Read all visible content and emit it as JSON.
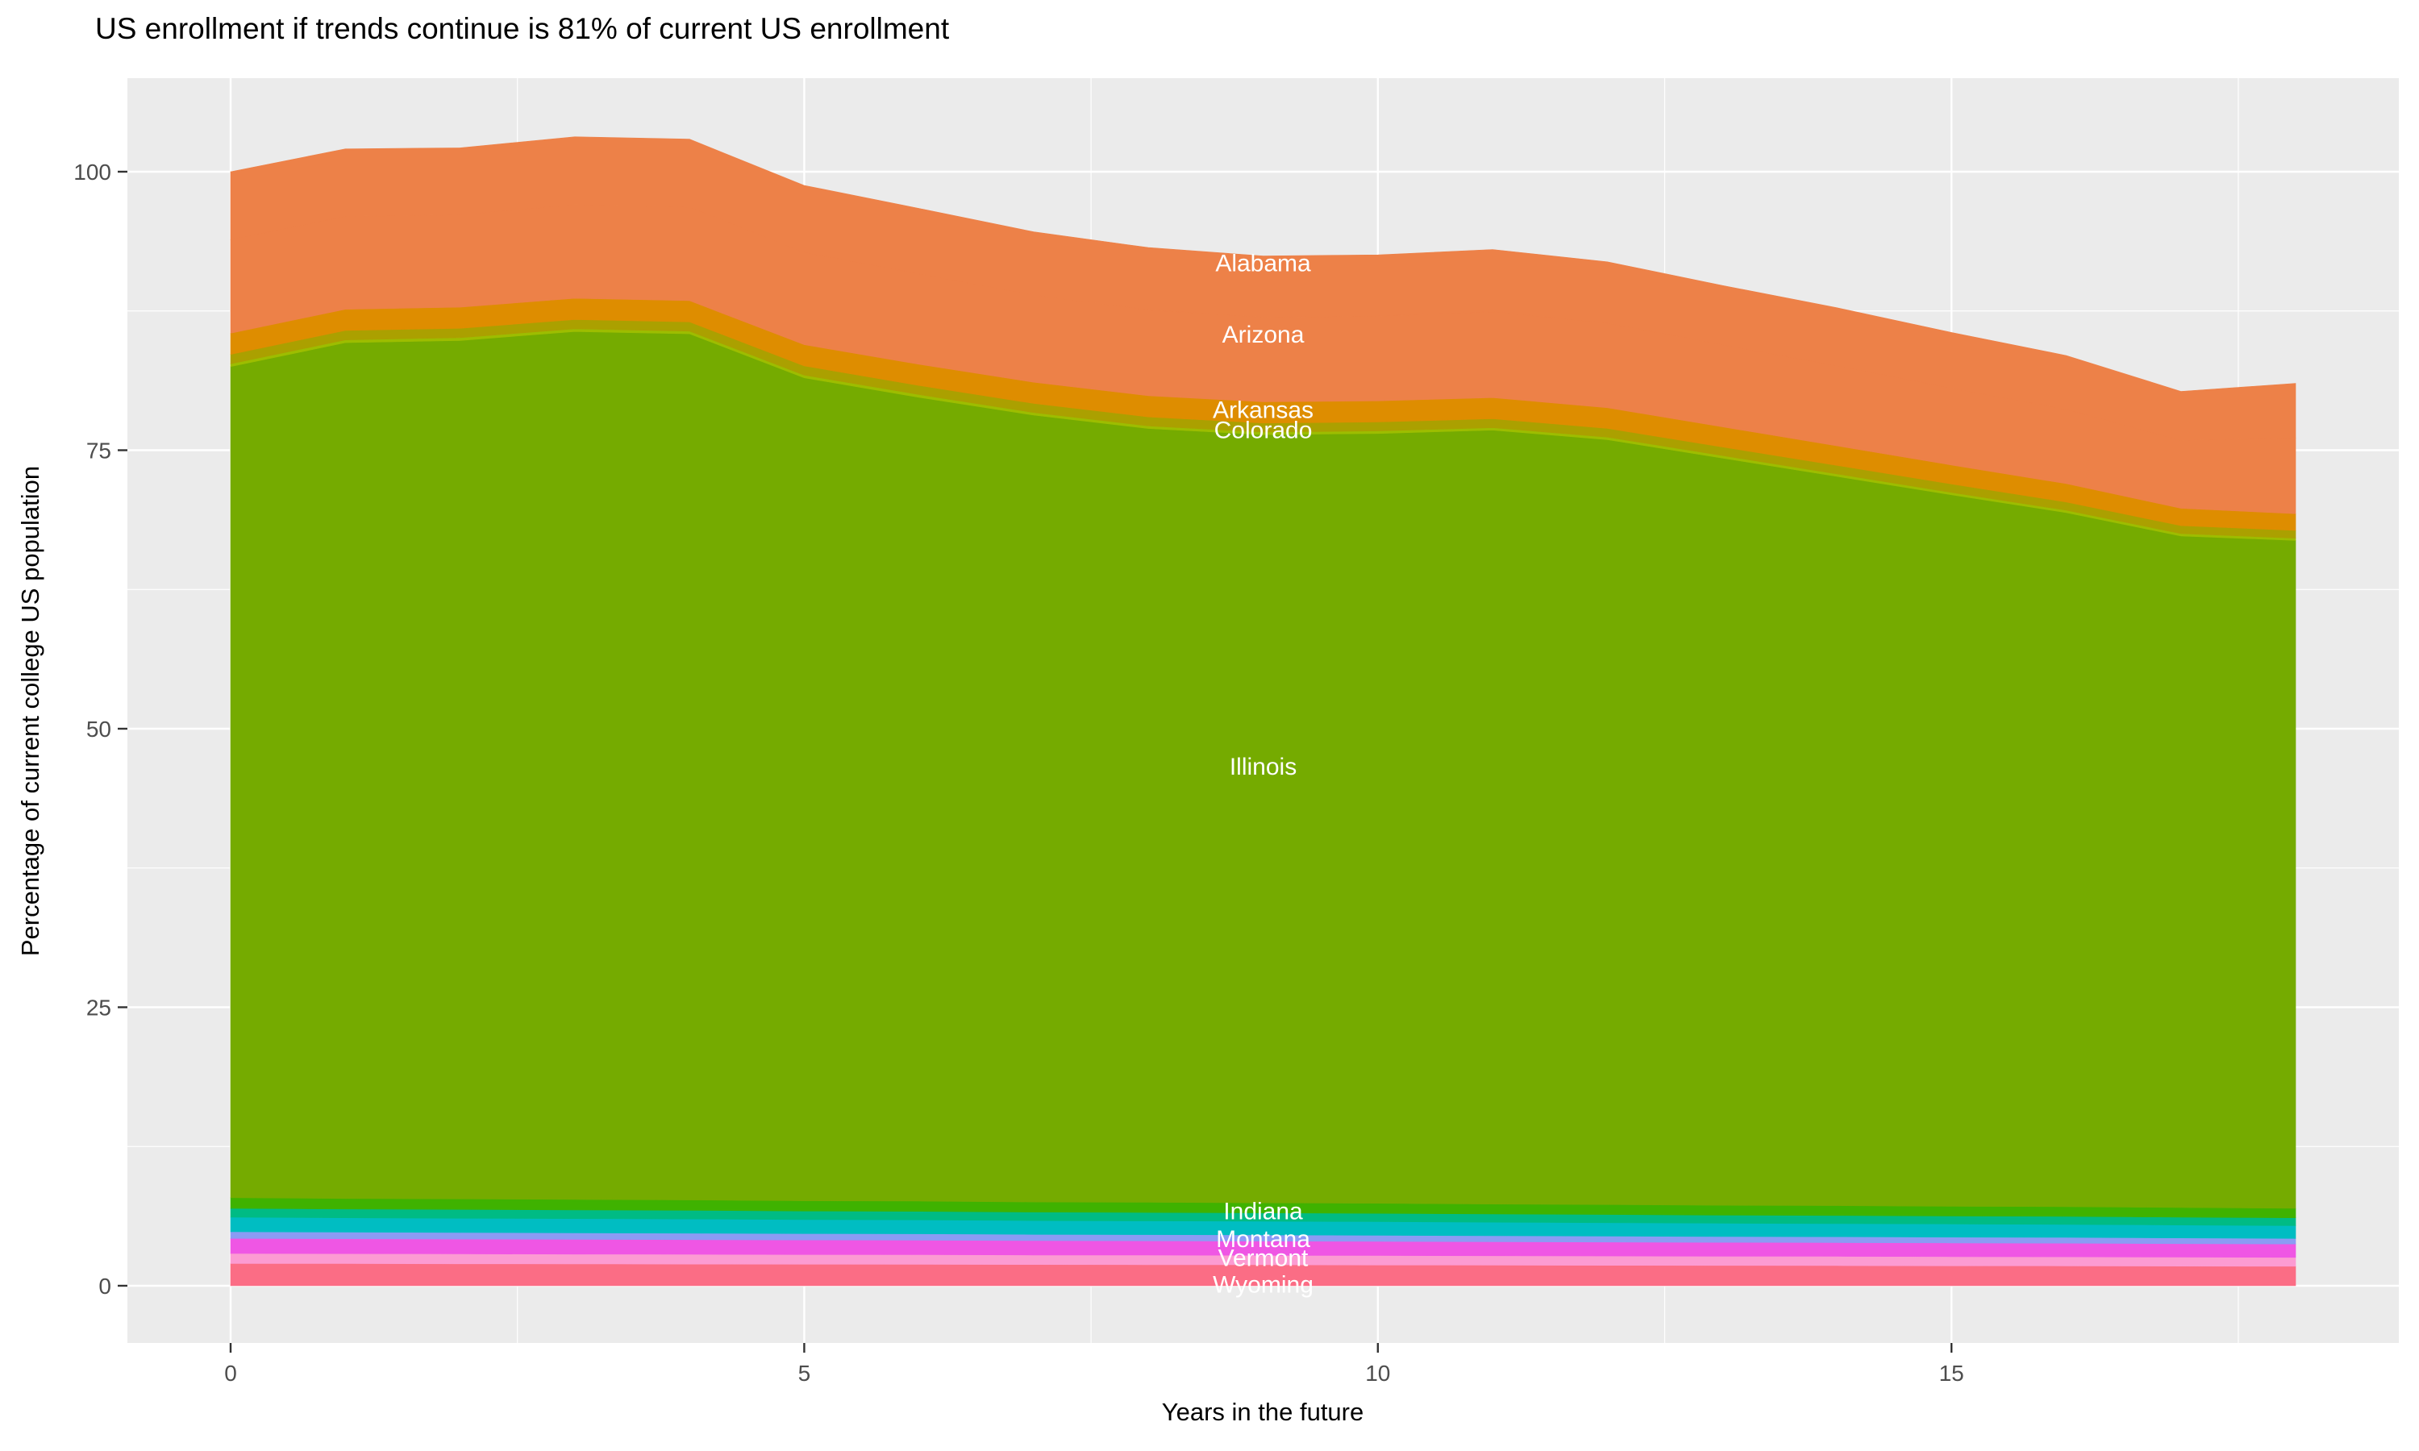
{
  "title": "US enrollment if trends continue is 81% of current US enrollment",
  "x_axis": {
    "label": "Years in the future",
    "ticks": [
      0,
      5,
      10,
      15
    ],
    "minor_ticks": [
      2.5,
      7.5,
      12.5,
      17.5
    ],
    "range": [
      0,
      18
    ]
  },
  "y_axis": {
    "label": "Percentage of current college US population",
    "ticks": [
      0,
      25,
      50,
      75,
      100
    ],
    "minor_ticks": [
      12.5,
      37.5,
      62.5,
      87.5
    ],
    "range": [
      0,
      103.2
    ]
  },
  "style_colors": {
    "panel_background": "#EBEBEB",
    "grid_major": "#FFFFFF",
    "grid_minor": "#FFFFFF",
    "tick_mark": "#333333",
    "tick_text": "#4D4D4D",
    "title_text": "#000000",
    "band_label_text": "#FFFFFF"
  },
  "chart_data": {
    "type": "area",
    "stacked": true,
    "legend": "none",
    "grid": "on",
    "title": "US enrollment if trends continue is 81% of current US enrollment",
    "xlabel": "Years in the future",
    "ylabel": "Percentage of current college US population",
    "xlim": [
      -0.9,
      18.9
    ],
    "ylim": [
      -5.16,
      108.36
    ],
    "x": [
      0,
      1,
      2,
      3,
      4,
      5,
      6,
      7,
      8,
      9,
      10,
      11,
      12,
      13,
      14,
      15,
      16,
      17,
      18
    ],
    "totals_by_year": [
      100.0,
      102.1,
      102.2,
      103.2,
      103.0,
      98.8,
      96.7,
      94.6,
      93.2,
      92.5,
      92.6,
      93.1,
      92.0,
      89.8,
      87.8,
      85.6,
      83.4,
      80.2,
      81.0
    ],
    "series": [
      {
        "name": "Wyoming",
        "color": "#FB6D85",
        "values": [
          2.0,
          1.99,
          1.97,
          1.96,
          1.94,
          1.93,
          1.92,
          1.9,
          1.89,
          1.88,
          1.86,
          1.85,
          1.83,
          1.82,
          1.81,
          1.79,
          1.78,
          1.76,
          1.75
        ]
      },
      {
        "name": "Vermont",
        "color": "#FC9BD2",
        "values": [
          0.9,
          0.89,
          0.89,
          0.88,
          0.88,
          0.87,
          0.87,
          0.86,
          0.86,
          0.85,
          0.85,
          0.84,
          0.84,
          0.83,
          0.83,
          0.82,
          0.82,
          0.81,
          0.8
        ]
      },
      {
        "name": "unlabeled-states-magenta",
        "color": "#EF56E4",
        "values": [
          1.35,
          1.34,
          1.33,
          1.33,
          1.32,
          1.31,
          1.3,
          1.29,
          1.28,
          1.28,
          1.27,
          1.26,
          1.25,
          1.24,
          1.23,
          1.23,
          1.22,
          1.21,
          1.2
        ]
      },
      {
        "name": "unlabeled-states-periwinkle",
        "color": "#8B9BF4",
        "values": [
          0.6,
          0.59,
          0.59,
          0.58,
          0.58,
          0.57,
          0.57,
          0.56,
          0.56,
          0.55,
          0.55,
          0.54,
          0.54,
          0.53,
          0.53,
          0.52,
          0.52,
          0.51,
          0.5
        ]
      },
      {
        "name": "Montana",
        "color": "#00BDC2",
        "values": [
          1.3,
          1.29,
          1.28,
          1.28,
          1.27,
          1.26,
          1.25,
          1.24,
          1.23,
          1.23,
          1.22,
          1.21,
          1.2,
          1.19,
          1.18,
          1.18,
          1.17,
          1.16,
          1.15
        ]
      },
      {
        "name": "Indiana",
        "color": "#00BB84",
        "values": [
          0.8,
          0.79,
          0.79,
          0.78,
          0.78,
          0.77,
          0.77,
          0.76,
          0.76,
          0.75,
          0.75,
          0.74,
          0.74,
          0.73,
          0.73,
          0.72,
          0.72,
          0.71,
          0.7
        ]
      },
      {
        "name": "unlabeled-states-green",
        "color": "#3FB200",
        "values": [
          0.95,
          0.94,
          0.94,
          0.93,
          0.93,
          0.92,
          0.92,
          0.91,
          0.91,
          0.9,
          0.9,
          0.89,
          0.89,
          0.88,
          0.88,
          0.87,
          0.87,
          0.86,
          0.85
        ]
      },
      {
        "name": "Illinois",
        "color": "#75AB00",
        "values": [
          74.6,
          76.82,
          77.06,
          77.91,
          77.75,
          73.87,
          72.15,
          70.63,
          69.46,
          68.96,
          69.1,
          69.47,
          68.66,
          67.08,
          65.46,
          63.87,
          62.3,
          60.28,
          59.95
        ]
      },
      {
        "name": "unlabeled-states-lightgreen",
        "color": "#9DBD00",
        "values": [
          0.25,
          0.25,
          0.25,
          0.24,
          0.24,
          0.24,
          0.24,
          0.23,
          0.23,
          0.23,
          0.23,
          0.22,
          0.22,
          0.22,
          0.22,
          0.21,
          0.21,
          0.21,
          0.2
        ]
      },
      {
        "name": "Colorado",
        "color": "#ABA000",
        "values": [
          0.85,
          0.85,
          0.84,
          0.84,
          0.83,
          0.83,
          0.82,
          0.82,
          0.81,
          0.81,
          0.8,
          0.8,
          0.79,
          0.78,
          0.77,
          0.76,
          0.74,
          0.72,
          0.7
        ]
      },
      {
        "name": "Arkansas",
        "color": "#DE8D00",
        "values": [
          1.9,
          1.9,
          1.9,
          1.9,
          1.9,
          1.9,
          1.9,
          1.9,
          1.9,
          1.9,
          1.9,
          1.9,
          1.85,
          1.8,
          1.75,
          1.7,
          1.65,
          1.55,
          1.5
        ]
      },
      {
        "name": "Arizona",
        "color": "#ED8148",
        "values": [
          8.41,
          8.35,
          8.29,
          8.41,
          8.41,
          8.29,
          8.12,
          7.83,
          7.71,
          7.6,
          7.6,
          7.71,
          7.6,
          7.37,
          7.19,
          6.9,
          6.67,
          6.09,
          6.79
        ]
      },
      {
        "name": "Alabama",
        "color": "#ED8148",
        "values": [
          6.09,
          6.05,
          6.01,
          6.09,
          6.09,
          6.01,
          5.88,
          5.67,
          5.59,
          5.5,
          5.5,
          5.59,
          5.5,
          5.33,
          5.21,
          5.0,
          4.83,
          4.41,
          4.91
        ]
      }
    ],
    "annotations": [
      {
        "text": "Alabama",
        "x": 9.0,
        "y": 91.8
      },
      {
        "text": "Arizona",
        "x": 9.0,
        "y": 85.4
      },
      {
        "text": "Arkansas",
        "x": 9.0,
        "y": 78.6
      },
      {
        "text": "Colorado",
        "x": 9.0,
        "y": 76.8
      },
      {
        "text": "Illinois",
        "x": 9.0,
        "y": 46.6
      },
      {
        "text": "Indiana",
        "x": 9.0,
        "y": 6.7
      },
      {
        "text": "Montana",
        "x": 9.0,
        "y": 4.2
      },
      {
        "text": "Vermont",
        "x": 9.0,
        "y": 2.5
      },
      {
        "text": "Wyoming",
        "x": 9.0,
        "y": 0.1
      }
    ]
  }
}
